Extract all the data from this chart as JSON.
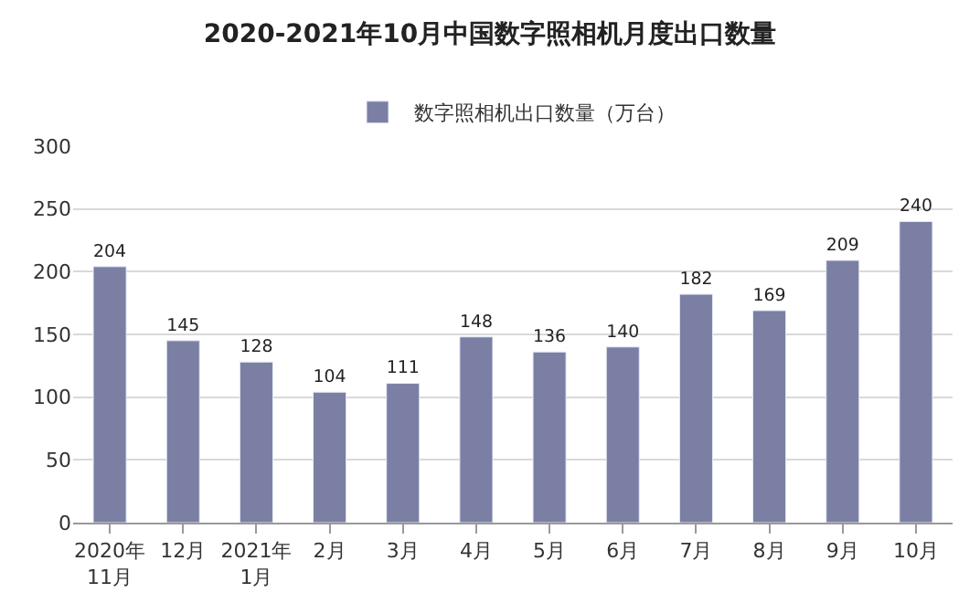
{
  "chart_data": {
    "type": "bar",
    "title": "2020-2021年10月中国数字照相机月度出口数量",
    "categories": [
      "2020年\n11月",
      "12月",
      "2021年\n1月",
      "2月",
      "3月",
      "4月",
      "5月",
      "6月",
      "7月",
      "8月",
      "9月",
      "10月"
    ],
    "series": [
      {
        "name": "数字照相机出口数量（万台）",
        "color": "#7b7fa3",
        "values": [
          204,
          145,
          128,
          104,
          111,
          148,
          136,
          140,
          182,
          169,
          209,
          240
        ]
      }
    ],
    "ylim": [
      0,
      300
    ],
    "yticks": [
      0,
      50,
      100,
      150,
      200,
      250,
      300
    ],
    "grid": "y",
    "legend": "top",
    "data_labels": true
  }
}
